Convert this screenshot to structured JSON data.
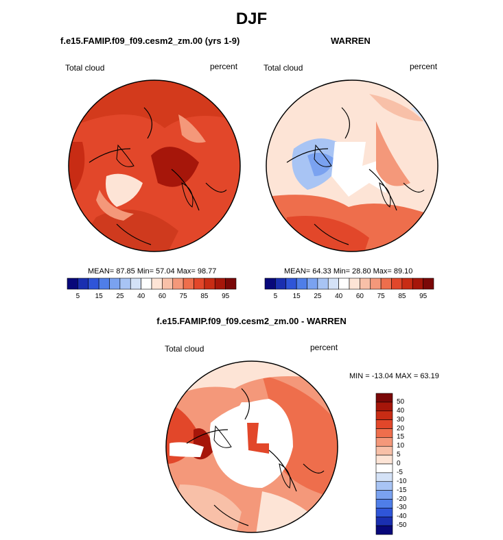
{
  "figure": {
    "title": "DJF",
    "panel1_title": "f.e15.FAMIP.f09_f09.cesm2_zm.00 (yrs 1-9)",
    "panel2_title": "WARREN",
    "panel3_title": "f.e15.FAMIP.f09_f09.cesm2_zm.00 - WARREN"
  },
  "chart_data": [
    {
      "type": "heatmap",
      "projection": "polar-stereographic",
      "title": "f.e15.FAMIP.f09_f09.cesm2_zm.00 (yrs 1-9)",
      "left_label": "Total cloud",
      "right_label": "percent",
      "stats_text": "MEAN=  87.85  Min=  57.04  Max=  98.77",
      "mean": 87.85,
      "min": 57.04,
      "max": 98.77,
      "colorbar": {
        "levels": [
          5,
          10,
          15,
          20,
          25,
          30,
          40,
          50,
          60,
          65,
          75,
          80,
          85,
          90,
          95
        ],
        "tick_labels": [
          "5",
          "15",
          "25",
          "40",
          "60",
          "75",
          "85",
          "95"
        ],
        "colors": [
          "#08087a",
          "#1a2fb0",
          "#2f55d8",
          "#4f7ee8",
          "#7aa2f0",
          "#a8c4f4",
          "#d4e2f7",
          "#ffffff",
          "#fde4d6",
          "#f8c0a8",
          "#f4987a",
          "#ee6e4c",
          "#e2472a",
          "#c82c14",
          "#a6160a",
          "#7a0808"
        ]
      }
    },
    {
      "type": "heatmap",
      "projection": "polar-stereographic",
      "title": "WARREN",
      "left_label": "Total cloud",
      "right_label": "percent",
      "stats_text": "MEAN=  64.33  Min=  28.80  Max=  89.10",
      "mean": 64.33,
      "min": 28.8,
      "max": 89.1,
      "colorbar": {
        "levels": [
          5,
          10,
          15,
          20,
          25,
          30,
          40,
          50,
          60,
          65,
          75,
          80,
          85,
          90,
          95
        ],
        "tick_labels": [
          "5",
          "15",
          "25",
          "40",
          "60",
          "75",
          "85",
          "95"
        ],
        "colors": [
          "#08087a",
          "#1a2fb0",
          "#2f55d8",
          "#4f7ee8",
          "#7aa2f0",
          "#a8c4f4",
          "#d4e2f7",
          "#ffffff",
          "#fde4d6",
          "#f8c0a8",
          "#f4987a",
          "#ee6e4c",
          "#e2472a",
          "#c82c14",
          "#a6160a",
          "#7a0808"
        ]
      }
    },
    {
      "type": "heatmap",
      "projection": "polar-stereographic",
      "title": "f.e15.FAMIP.f09_f09.cesm2_zm.00 - WARREN",
      "left_label": "Total cloud",
      "right_label": "percent",
      "stats_text": "MIN = -13.04 MAX =  63.19",
      "min": -13.04,
      "max": 63.19,
      "colorbar": {
        "orientation": "vertical",
        "tick_labels": [
          "50",
          "40",
          "30",
          "20",
          "15",
          "10",
          "5",
          "0",
          "-5",
          "-10",
          "-15",
          "-20",
          "-30",
          "-40",
          "-50"
        ],
        "colors": [
          "#7a0808",
          "#a6160a",
          "#c82c14",
          "#e2472a",
          "#ee6e4c",
          "#f4987a",
          "#f8c0a8",
          "#fde4d6",
          "#ffffff",
          "#d4e2f7",
          "#a8c4f4",
          "#7aa2f0",
          "#4f7ee8",
          "#2f55d8",
          "#1a2fb0",
          "#08087a"
        ]
      }
    }
  ]
}
